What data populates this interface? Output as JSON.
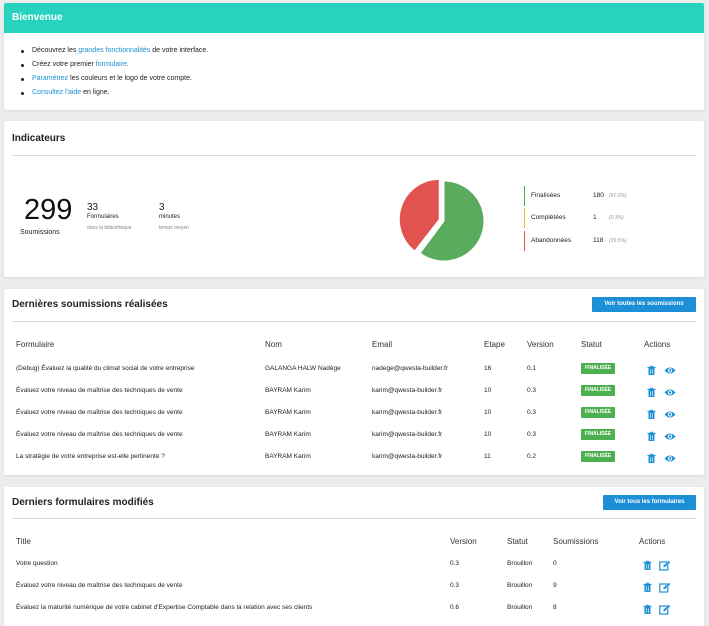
{
  "welcome": {
    "title": "Bienvenue",
    "items": [
      {
        "pre": "Découvrez les ",
        "link": "grandes fonctionnalités",
        "post": " de votre interface."
      },
      {
        "pre": "Créez votre premier ",
        "link": "formulaire",
        "post": "."
      },
      {
        "pre": "",
        "link": "Paramétrez",
        "post": " les couleurs et le logo de votre compte."
      },
      {
        "pre": "",
        "link": "Consultez l'aide",
        "post": " en ligne."
      }
    ]
  },
  "indicators": {
    "title": "Indicateurs",
    "submissions_value": "299",
    "submissions_label": "Soumissions",
    "forms_value": "33",
    "forms_label": "Formulaires",
    "forms_sub": "dans la bibliothèque",
    "time_value": "3",
    "time_label": "minutes",
    "time_sub": "temps moyen",
    "legend": [
      {
        "label": "Finalisées",
        "value": "180",
        "pct": "(60.2%)",
        "color": "#5aab5e"
      },
      {
        "label": "Complétées",
        "value": "1",
        "pct": "(0.3%)",
        "color": "#f0b429"
      },
      {
        "label": "Abandonnées",
        "value": "118",
        "pct": "(39.5%)",
        "color": "#e2534f"
      }
    ]
  },
  "chart_data": {
    "type": "pie",
    "categories": [
      "Finalisées",
      "Complétées",
      "Abandonnées"
    ],
    "values": [
      180,
      1,
      118
    ],
    "colors": [
      "#5aab5e",
      "#f0b429",
      "#e2534f"
    ]
  },
  "submissions": {
    "title": "Dernières soumissions réalisées",
    "button": "Voir toutes les soumissions",
    "headers": [
      "Formulaire",
      "Nom",
      "Email",
      "Etape",
      "Version",
      "Statut",
      "Actions"
    ],
    "rows": [
      {
        "form": "(Debug) Évaluez la qualité du climat social de votre entreprise",
        "name": "GALANGA HALW Nadège",
        "email": "nadege@qwesta-builder.fr",
        "step": "16",
        "version": "0.1",
        "status": "FINALISÉE"
      },
      {
        "form": "Évaluez votre niveau de maîtrise des techniques de vente",
        "name": "BAYRAM Karim",
        "email": "karim@qwesta-builder.fr",
        "step": "10",
        "version": "0.3",
        "status": "FINALISÉE"
      },
      {
        "form": "Évaluez votre niveau de maîtrise des techniques de vente",
        "name": "BAYRAM Karim",
        "email": "karim@qwesta-builder.fr",
        "step": "10",
        "version": "0.3",
        "status": "FINALISÉE"
      },
      {
        "form": "Évaluez votre niveau de maîtrise des techniques de vente",
        "name": "BAYRAM Karim",
        "email": "karim@qwesta-builder.fr",
        "step": "10",
        "version": "0.3",
        "status": "FINALISÉE"
      },
      {
        "form": "La stratégie de votre entreprise est-elle pertinente ?",
        "name": "BAYRAM Karim",
        "email": "karim@qwesta-builder.fr",
        "step": "11",
        "version": "0.2",
        "status": "FINALISÉE"
      }
    ]
  },
  "forms": {
    "title": "Derniers formulaires modifiés",
    "button": "Voir tous les formulaires",
    "headers": [
      "Title",
      "Version",
      "Statut",
      "Soumissions",
      "Actions"
    ],
    "rows": [
      {
        "title": "Votre question",
        "version": "0.3",
        "status": "Brouillon",
        "subs": "0"
      },
      {
        "title": "Évaluez votre niveau de maîtrise des techniques de vente",
        "version": "0.3",
        "status": "Brouillon",
        "subs": "9"
      },
      {
        "title": "Évaluez la maturité numérique de votre cabinet d'Expertise Comptable dans la relation avec ses clients",
        "version": "0.6",
        "status": "Brouillon",
        "subs": "8"
      }
    ]
  },
  "icons": {
    "delete": "trash-icon",
    "view": "eye-icon",
    "edit": "edit-icon"
  },
  "colors": {
    "accent": "#27d3bf",
    "link": "#1c8fd6",
    "success": "#4caf50"
  }
}
